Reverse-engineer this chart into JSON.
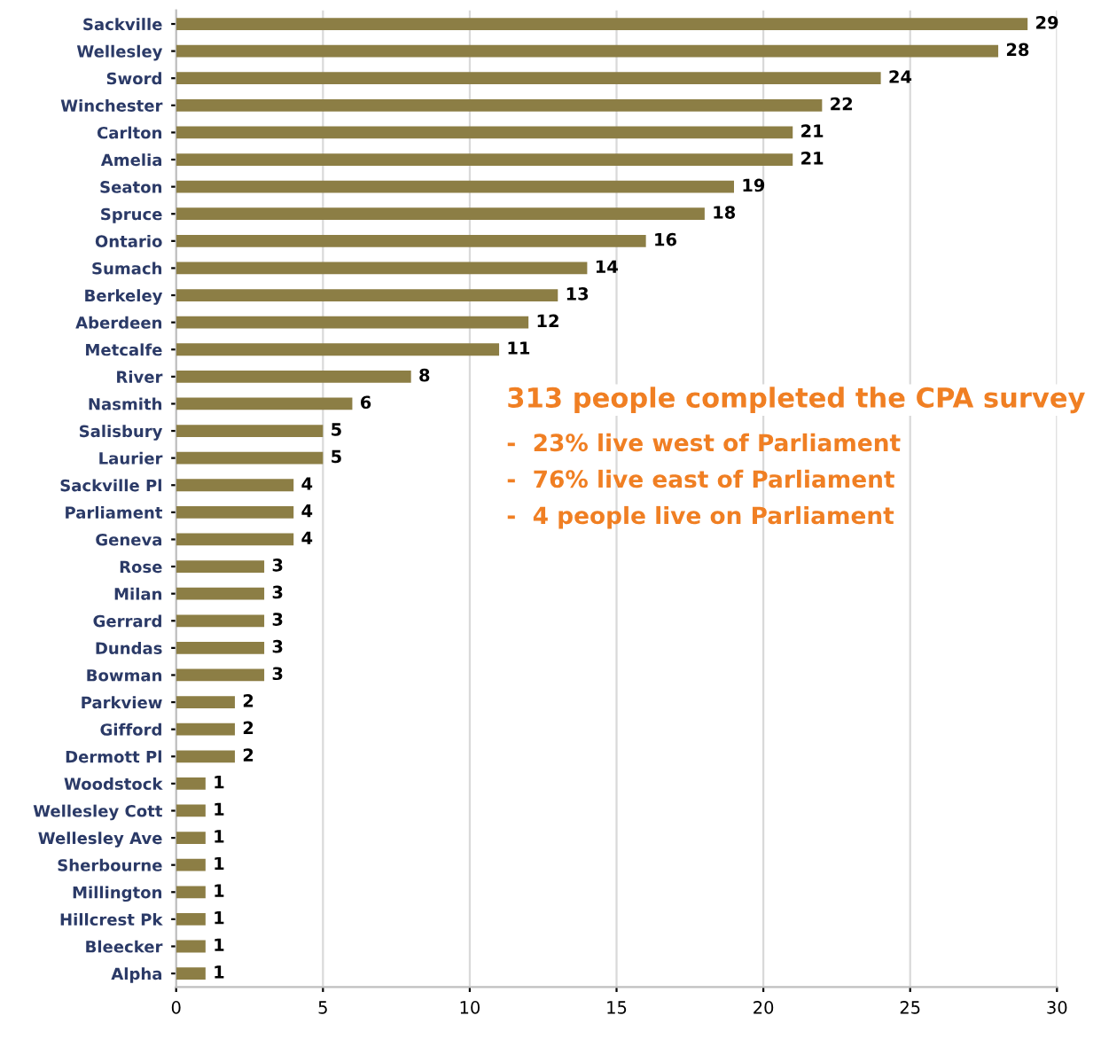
{
  "chart_data": {
    "type": "bar",
    "orientation": "horizontal",
    "categories": [
      "Sackville",
      "Wellesley",
      "Sword",
      "Winchester",
      "Carlton",
      "Amelia",
      "Seaton",
      "Spruce",
      "Ontario",
      "Sumach",
      "Berkeley",
      "Aberdeen",
      "Metcalfe",
      "River",
      "Nasmith",
      "Salisbury",
      "Laurier",
      "Sackville Pl",
      "Parliament",
      "Geneva",
      "Rose",
      "Milan",
      "Gerrard",
      "Dundas",
      "Bowman",
      "Parkview",
      "Gifford",
      "Dermott Pl",
      "Woodstock",
      "Wellesley Cott",
      "Wellesley Ave",
      "Sherbourne",
      "Millington",
      "Hillcrest Pk",
      "Bleecker",
      "Alpha"
    ],
    "values": [
      29,
      28,
      24,
      22,
      21,
      21,
      19,
      18,
      16,
      14,
      13,
      12,
      11,
      8,
      6,
      5,
      5,
      4,
      4,
      4,
      3,
      3,
      3,
      3,
      3,
      2,
      2,
      2,
      1,
      1,
      1,
      1,
      1,
      1,
      1,
      1
    ],
    "color": "#8c7e45",
    "xlim": [
      0,
      30
    ],
    "xticks": [
      0,
      5,
      10,
      15,
      20,
      25,
      30
    ],
    "grid": "x",
    "data_labels": true,
    "annotations": [
      "313 people completed the CPA survey",
      "-  23% live west of Parliament",
      "-  76% live east of Parliament",
      "-  4 people live on Parliament"
    ]
  }
}
